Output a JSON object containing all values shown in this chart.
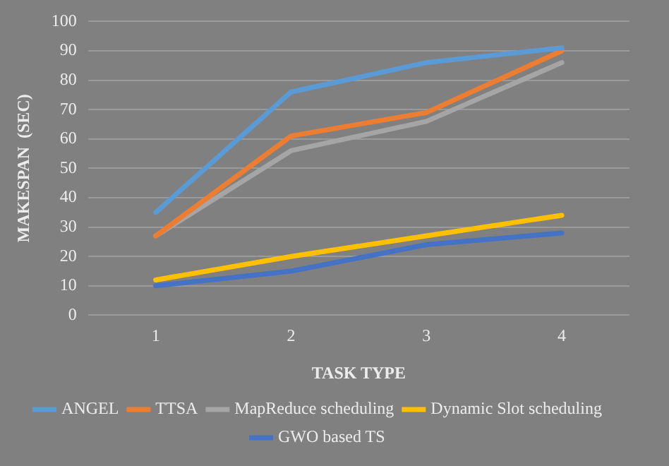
{
  "chart_data": {
    "type": "line",
    "xlabel": "TASK TYPE",
    "ylabel": "MAKESPAN  (SEC)",
    "categories": [
      "1",
      "2",
      "3",
      "4"
    ],
    "series": [
      {
        "name": "ANGEL",
        "color": "#5b9bd5",
        "values": [
          35,
          76,
          86,
          91
        ]
      },
      {
        "name": "TTSA",
        "color": "#ed7d31",
        "values": [
          27,
          61,
          69,
          90
        ]
      },
      {
        "name": "MapReduce scheduling",
        "color": "#a5a5a5",
        "values": [
          27,
          56,
          66,
          86
        ]
      },
      {
        "name": "Dynamic Slot scheduling",
        "color": "#ffc000",
        "values": [
          12,
          20,
          27,
          34
        ]
      },
      {
        "name": "GWO based TS",
        "color": "#4472c4",
        "values": [
          10,
          15,
          24,
          28
        ]
      }
    ],
    "ylim": [
      0,
      100
    ],
    "yticks": [
      0,
      10,
      20,
      30,
      40,
      50,
      60,
      70,
      80,
      90,
      100
    ],
    "grid": "y",
    "legend": "bottom",
    "marker": "none",
    "line_style": "solid"
  }
}
